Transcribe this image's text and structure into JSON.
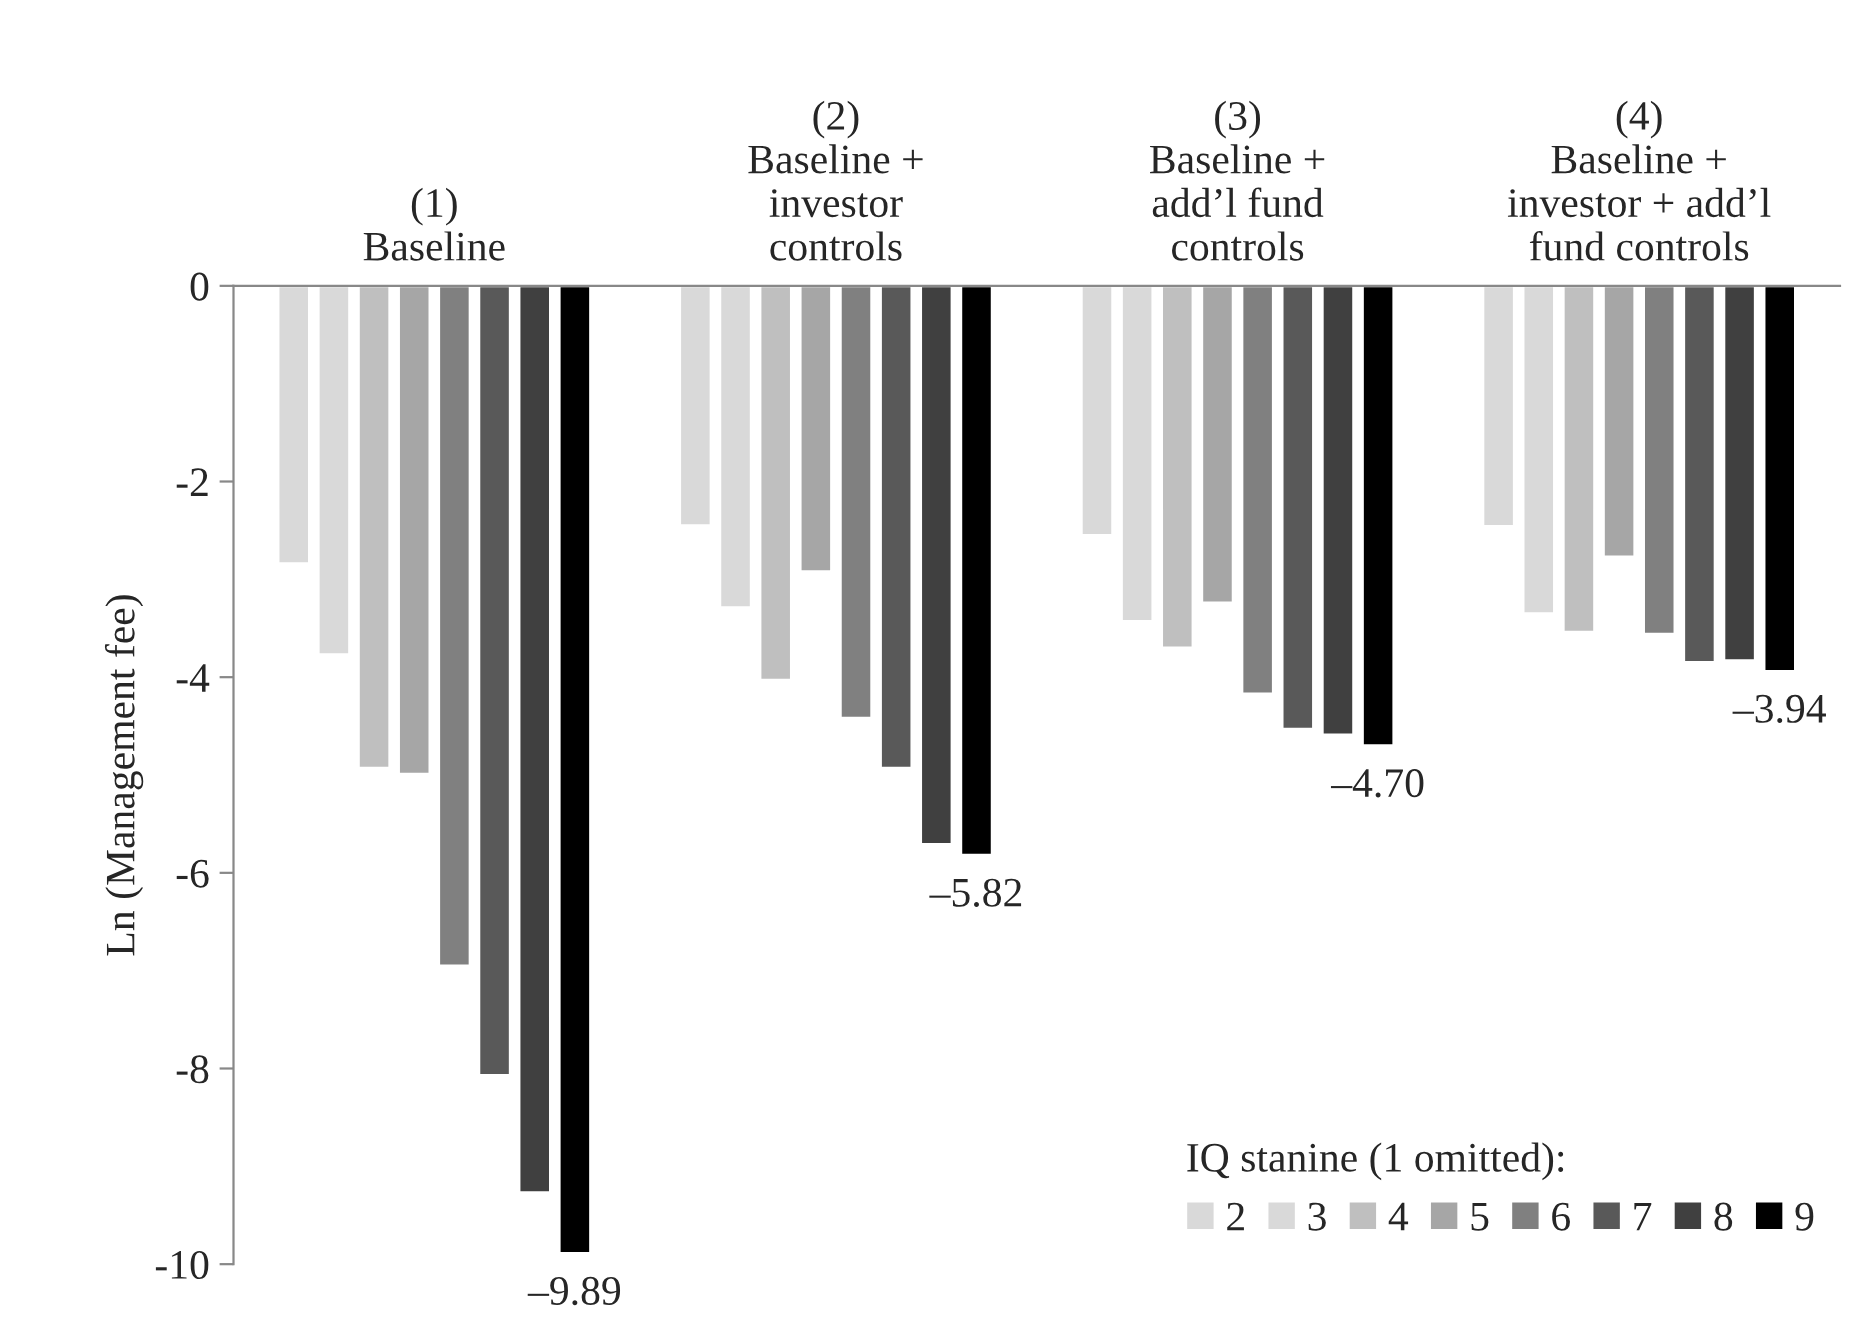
{
  "chart_data": {
    "type": "bar",
    "categories": [
      "(1)\nBaseline",
      "(2)\nBaseline +\ninvestor\ncontrols",
      "(3)\nBaseline +\nadd’l fund\ncontrols",
      "(4)\nBaseline +\ninvestor + add’l\nfund controls"
    ],
    "ylabel": "Ln (Management fee)",
    "legend_title": "IQ stanine (1 omitted):",
    "series": [
      {
        "name": "2",
        "color": "#d9d9d9",
        "values": [
          -2.84,
          -2.45,
          -2.55,
          -2.46
        ]
      },
      {
        "name": "3",
        "color": "#d9d9d9",
        "values": [
          -3.77,
          -3.29,
          -3.43,
          -3.35
        ]
      },
      {
        "name": "4",
        "color": "#bfbfbf",
        "values": [
          -4.93,
          -4.03,
          -3.7,
          -3.54
        ]
      },
      {
        "name": "5",
        "color": "#a6a6a6",
        "values": [
          -4.99,
          -2.92,
          -3.24,
          -2.77
        ]
      },
      {
        "name": "6",
        "color": "#808080",
        "values": [
          -6.95,
          -4.42,
          -4.17,
          -3.56
        ]
      },
      {
        "name": "7",
        "color": "#595959",
        "values": [
          -8.07,
          -4.93,
          -4.53,
          -3.85
        ]
      },
      {
        "name": "8",
        "color": "#404040",
        "values": [
          -9.27,
          -5.71,
          -4.59,
          -3.83
        ]
      },
      {
        "name": "9",
        "color": "#000000",
        "values": [
          -9.89,
          -5.82,
          -4.7,
          -3.94
        ],
        "value_labels": [
          "–9.89",
          "–5.82",
          "–4.70",
          "–3.94"
        ]
      }
    ],
    "ylim": [
      -10,
      0
    ],
    "yticks": [
      {
        "value": 0,
        "label": "0"
      },
      {
        "value": -2,
        "label": "-2"
      },
      {
        "value": -4,
        "label": "-4"
      },
      {
        "value": -6,
        "label": "-6"
      },
      {
        "value": -8,
        "label": "-8"
      },
      {
        "value": -10,
        "label": "-10"
      }
    ],
    "grid": false,
    "legend": "bottom right"
  }
}
